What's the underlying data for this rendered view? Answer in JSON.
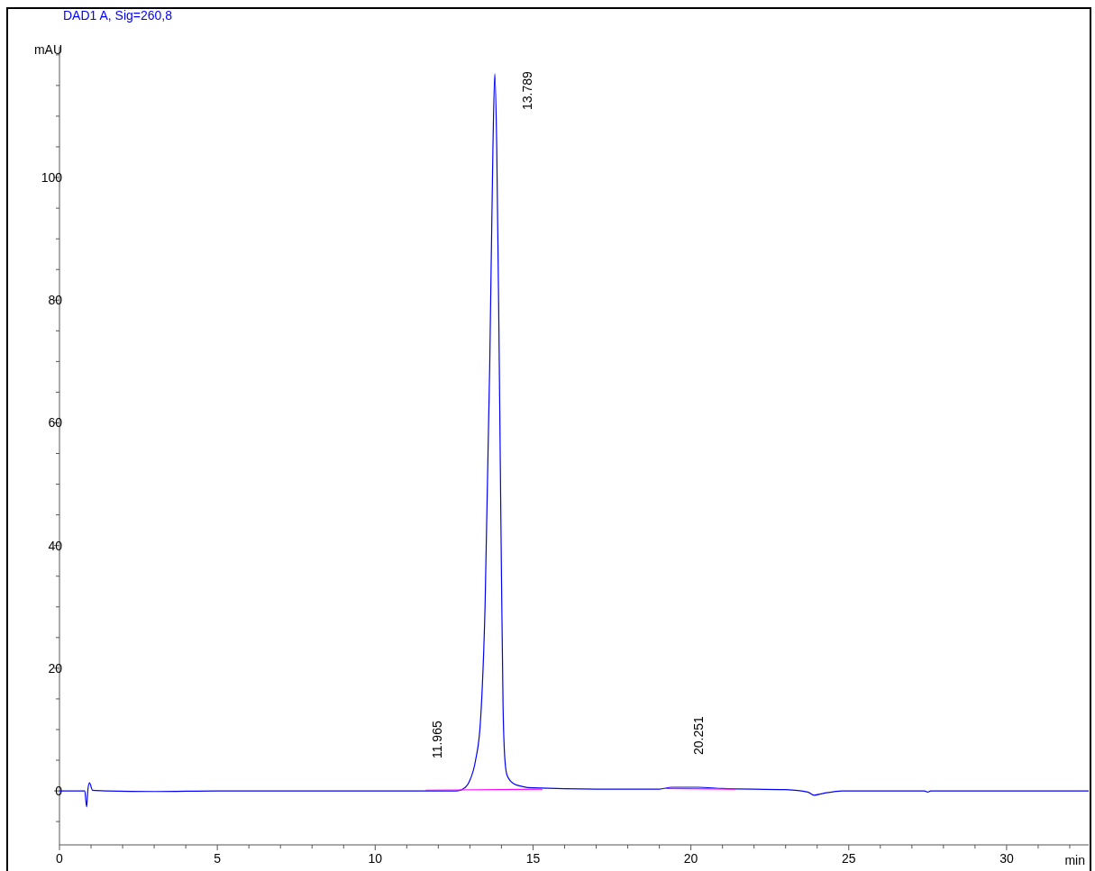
{
  "chart_data": {
    "type": "line",
    "title": "DAD1 A, Sig=260,8",
    "xlabel": "min",
    "ylabel": "mAU",
    "xlim": [
      0,
      32.6
    ],
    "xticks": [
      0,
      {
        "value": 1,
        "label": null
      },
      {
        "value": 2,
        "label": null
      },
      {
        "value": 3,
        "label": null
      },
      {
        "value": 4,
        "label": null
      },
      5,
      {
        "value": 6,
        "label": null
      },
      {
        "value": 7,
        "label": null
      },
      {
        "value": 8,
        "label": null
      },
      {
        "value": 9,
        "label": null
      },
      10,
      {
        "value": 11,
        "label": null
      },
      {
        "value": 12,
        "label": null
      },
      {
        "value": 13,
        "label": null
      },
      {
        "value": 14,
        "label": null
      },
      15,
      {
        "value": 16,
        "label": null
      },
      {
        "value": 17,
        "label": null
      },
      {
        "value": 18,
        "label": null
      },
      {
        "value": 19,
        "label": null
      },
      20,
      {
        "value": 21,
        "label": null
      },
      {
        "value": 22,
        "label": null
      },
      {
        "value": 23,
        "label": null
      },
      {
        "value": 24,
        "label": null
      },
      25,
      {
        "value": 26,
        "label": null
      },
      {
        "value": 27,
        "label": null
      },
      {
        "value": 28,
        "label": null
      },
      {
        "value": 29,
        "label": null
      },
      30,
      {
        "value": 31,
        "label": null
      },
      {
        "value": 32,
        "label": null
      }
    ],
    "ylim": [
      -8.8,
      121.3
    ],
    "yticks": [
      {
        "value": -5,
        "label": null
      },
      0,
      {
        "value": 5,
        "label": null
      },
      {
        "value": 10,
        "label": null
      },
      {
        "value": 15,
        "label": null
      },
      20,
      {
        "value": 25,
        "label": null
      },
      {
        "value": 30,
        "label": null
      },
      {
        "value": 35,
        "label": null
      },
      40,
      {
        "value": 45,
        "label": null
      },
      {
        "value": 50,
        "label": null
      },
      {
        "value": 55,
        "label": null
      },
      60,
      {
        "value": 65,
        "label": null
      },
      {
        "value": 70,
        "label": null
      },
      {
        "value": 75,
        "label": null
      },
      80,
      {
        "value": 85,
        "label": null
      },
      {
        "value": 90,
        "label": null
      },
      {
        "value": 95,
        "label": null
      },
      100,
      {
        "value": 105,
        "label": null
      },
      {
        "value": 110,
        "label": null
      },
      {
        "value": 115,
        "label": null
      },
      {
        "value": 120,
        "label": null
      }
    ],
    "grid": false,
    "marker": "none",
    "line_style": "solid",
    "series": [
      {
        "color": "#0000ff",
        "x": [
          0,
          0.5,
          0.8,
          0.86,
          0.9,
          0.95,
          1.05,
          1.5,
          3,
          5,
          8,
          10,
          11.9,
          12.58,
          12.78,
          12.98,
          13.18,
          13.33,
          13.48,
          13.63,
          13.73,
          13.789,
          13.85,
          13.93,
          14.0,
          14.05,
          14.11,
          14.18,
          14.38,
          14.68,
          15,
          17,
          19,
          19.4,
          20.2,
          21,
          23,
          23.7,
          23.9,
          24.2,
          24.8,
          27.4,
          27.5,
          27.6,
          32.6
        ],
        "values": [
          0,
          0,
          0,
          -2.6,
          0.2,
          1.3,
          0.1,
          0,
          -0.1,
          0,
          0,
          0,
          0,
          0,
          0.3,
          1.5,
          5,
          11,
          30,
          70,
          105,
          116.9,
          105,
          70,
          35,
          14,
          5,
          2.5,
          1.2,
          0.7,
          0.5,
          0.3,
          0.3,
          0.6,
          0.6,
          0.4,
          0.2,
          -0.2,
          -0.7,
          -0.4,
          0,
          0,
          -0.2,
          0,
          0
        ]
      },
      {
        "color": "#ff00ff",
        "x": [
          11.6,
          15.3
        ],
        "values": [
          0.1,
          0.3
        ]
      },
      {
        "color": "#ff00ff",
        "x": [
          19.2,
          21.4
        ],
        "values": [
          0.4,
          0.3
        ]
      }
    ],
    "annotations": [
      {
        "text": "11.965",
        "x": 11.965,
        "y": 0
      },
      {
        "text": "13.789",
        "x": 13.789,
        "y": 116.9
      },
      {
        "text": "20.251",
        "x": 20.251,
        "y": 0.6
      }
    ]
  }
}
